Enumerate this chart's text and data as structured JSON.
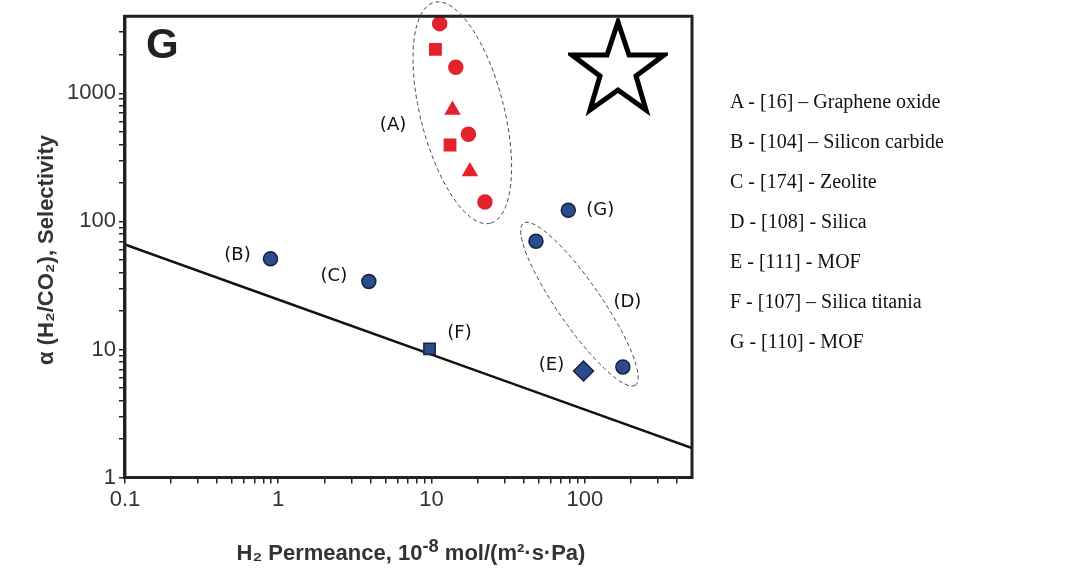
{
  "chart_data": {
    "type": "scatter",
    "title": "G",
    "xlabel": "H₂ Permeance, 10$^{-8}$ mol/(m²·s·Pa)",
    "ylabel": "α (H₂/CO₂),  Selectivity",
    "log": "xy",
    "grid": false,
    "legend": false,
    "xlim": [
      0.1,
      500
    ],
    "ylim": [
      1,
      4000
    ],
    "xticks": [
      0.1,
      {
        "value": 0.2,
        "label": null
      },
      {
        "value": 0.3,
        "label": null
      },
      {
        "value": 0.4,
        "label": null
      },
      {
        "value": 0.5,
        "label": null
      },
      {
        "value": 0.6,
        "label": null
      },
      {
        "value": 0.7,
        "label": null
      },
      {
        "value": 0.8,
        "label": null
      },
      {
        "value": 0.9,
        "label": null
      },
      1,
      {
        "value": 2,
        "label": null
      },
      {
        "value": 3,
        "label": null
      },
      {
        "value": 4,
        "label": null
      },
      {
        "value": 5,
        "label": null
      },
      {
        "value": 6,
        "label": null
      },
      {
        "value": 7,
        "label": null
      },
      {
        "value": 8,
        "label": null
      },
      {
        "value": 9,
        "label": null
      },
      10,
      {
        "value": 20,
        "label": null
      },
      {
        "value": 30,
        "label": null
      },
      {
        "value": 40,
        "label": null
      },
      {
        "value": 50,
        "label": null
      },
      {
        "value": 60,
        "label": null
      },
      {
        "value": 70,
        "label": null
      },
      {
        "value": 80,
        "label": null
      },
      {
        "value": 90,
        "label": null
      },
      100,
      {
        "value": 200,
        "label": null
      },
      {
        "value": 300,
        "label": null
      },
      {
        "value": 400,
        "label": null
      }
    ],
    "yticks": [
      1,
      {
        "value": 2,
        "label": null
      },
      {
        "value": 3,
        "label": null
      },
      {
        "value": 4,
        "label": null
      },
      {
        "value": 5,
        "label": null
      },
      {
        "value": 6,
        "label": null
      },
      {
        "value": 7,
        "label": null
      },
      {
        "value": 8,
        "label": null
      },
      {
        "value": 9,
        "label": null
      },
      10,
      {
        "value": 20,
        "label": null
      },
      {
        "value": 30,
        "label": null
      },
      {
        "value": 40,
        "label": null
      },
      {
        "value": 50,
        "label": null
      },
      {
        "value": 60,
        "label": null
      },
      {
        "value": 70,
        "label": null
      },
      {
        "value": 80,
        "label": null
      },
      {
        "value": 90,
        "label": null
      },
      100,
      {
        "value": 200,
        "label": null
      },
      {
        "value": 300,
        "label": null
      },
      {
        "value": 400,
        "label": null
      },
      {
        "value": 500,
        "label": null
      },
      {
        "value": 600,
        "label": null
      },
      {
        "value": 700,
        "label": null
      },
      {
        "value": 800,
        "label": null
      },
      {
        "value": 900,
        "label": null
      },
      1000,
      {
        "value": 2000,
        "label": null
      },
      {
        "value": 3000,
        "label": null
      }
    ],
    "series": [
      {
        "color": "#e3222b",
        "marker": "circle",
        "x": [
          11.3,
          14.4,
          17.4,
          22.3
        ],
        "values": [
          3500,
          1600,
          480,
          142
        ]
      },
      {
        "color": "#e3222b",
        "marker": "square",
        "x": [
          10.6,
          13.2
        ],
        "values": [
          2200,
          395
        ]
      },
      {
        "color": "#e3222b",
        "marker": "triangle",
        "x": [
          13.7,
          17.8
        ],
        "values": [
          740,
          245
        ]
      },
      {
        "color": "#2c4b8c",
        "marker": "circle",
        "x": [
          0.89,
          3.9,
          78
        ],
        "values": [
          51,
          34,
          122
        ]
      },
      {
        "color": "#2c4b8c",
        "marker": "circle",
        "x": [
          48,
          177
        ],
        "values": [
          70,
          7.3
        ]
      },
      {
        "color": "#2c4b8c",
        "marker": "square",
        "x": [
          9.7
        ],
        "values": [
          10.1
        ]
      },
      {
        "color": "#2c4b8c",
        "marker": "diamond",
        "x": [
          98
        ],
        "values": [
          6.8
        ]
      },
      {
        "type": "line",
        "color": "#111111",
        "marker": "none",
        "line_style": "solid",
        "x": [
          0.1,
          500
        ],
        "values": [
          66,
          1.7
        ]
      }
    ],
    "annotations": [
      {
        "text": "(A)",
        "x": 13.2,
        "y": 395
      },
      {
        "text": "(B)",
        "x": 0.89,
        "y": 51
      },
      {
        "text": "(C)",
        "x": 3.9,
        "y": 34
      },
      "(D)",
      {
        "text": "(E)",
        "x": 98,
        "y": 6.8
      },
      {
        "text": "(F)",
        "x": 9.7,
        "y": 10.1
      },
      {
        "text": "(G)",
        "x": 78,
        "y": 122
      },
      "A - [16] – Graphene oxide",
      "B - [104] – Silicon carbide",
      "C - [174] - Zeolite",
      "D - [108] - Silica",
      "E - [111] - MOF",
      "F - [107] – Silica titania",
      "G - [110] - MOF"
    ]
  }
}
